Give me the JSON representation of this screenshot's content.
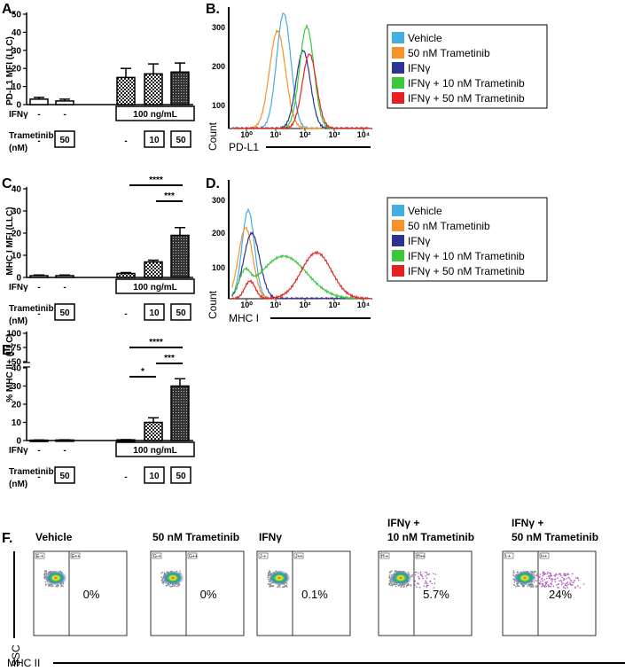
{
  "panels": {
    "A": {
      "label": "A.",
      "ylabel": "PD-L1 MFI (LLC)",
      "yticks": [
        "0",
        "10",
        "20",
        "30",
        "40",
        "50"
      ]
    },
    "B": {
      "label": "B.",
      "ylabel": "Count",
      "xlabel": "PD-L1"
    },
    "C": {
      "label": "C.",
      "ylabel": "MHC I MFI (LLC)",
      "yticks": [
        "0",
        "10",
        "20",
        "30",
        "40"
      ]
    },
    "D": {
      "label": "D.",
      "ylabel": "Count",
      "xlabel": "MHC I"
    },
    "E": {
      "label": "E.",
      "ylabel": "% MHC II+ (LLC)",
      "yticks_low": [
        "0",
        "10",
        "20",
        "30",
        "40"
      ],
      "yticks_high": [
        "50",
        "75",
        "100"
      ]
    },
    "F": {
      "label": "F.",
      "ylabel": "SSC",
      "xlabel": "MHC II"
    }
  },
  "treatment_table": {
    "ifn_label": "IFNγ",
    "tram_label": "Trametinib",
    "tram_unit": "(nM)",
    "dash": "-",
    "ifn_dose": "100 ng/mL",
    "doses": [
      "50",
      "10",
      "50"
    ]
  },
  "significance": {
    "four": "****",
    "three": "***",
    "one": "*"
  },
  "legend": [
    "Vehicle",
    "50 nM Trametinib",
    "IFNγ",
    "IFNγ + 10 nM Trametinib",
    "IFNγ + 50 nM Trametinib"
  ],
  "colors": {
    "vehicle": "#44aee0",
    "tram50": "#f5922a",
    "ifn": "#2e3192",
    "ifn_tram10": "#3cc83c",
    "ifn_tram50": "#e52222"
  },
  "flow_plots": [
    {
      "title": "Vehicle",
      "pct": "0%",
      "gate_left": "E-+",
      "gate_right": "E++"
    },
    {
      "title": "50 nM Trametinib",
      "pct": "0%",
      "gate_left": "G-+",
      "gate_right": "G++"
    },
    {
      "title": "IFNγ",
      "pct": "0.1%",
      "gate_left": "J-+",
      "gate_right": "J++"
    },
    {
      "title": "IFNγ +",
      "title2": "10 nM Trametinib",
      "pct": "5.7%",
      "gate_left": "H-+",
      "gate_right": "H++"
    },
    {
      "title": "IFNγ +",
      "title2": "50 nM Trametinib",
      "pct": "24%",
      "gate_left": "I-+",
      "gate_right": "I++"
    }
  ],
  "hist_ticks": [
    "10⁰",
    "10¹",
    "10²",
    "10³",
    "10⁴"
  ],
  "hist_yticks_B": [
    "100",
    "200",
    "300"
  ],
  "hist_yticks_D": [
    "100",
    "200",
    "300"
  ],
  "chart_data": [
    {
      "type": "bar",
      "title": "PD-L1 MFI (LLC)",
      "categories": [
        "Vehicle",
        "50 nM Trametinib",
        "IFNγ",
        "IFNγ + 10 nM Trametinib",
        "IFNγ + 50 nM Trametinib"
      ],
      "values": [
        3,
        2,
        15,
        17,
        18
      ],
      "errors": [
        1,
        1,
        5,
        5.5,
        5
      ],
      "ylim": [
        0,
        50
      ]
    },
    {
      "type": "bar",
      "title": "MHC I MFI (LLC)",
      "categories": [
        "Vehicle",
        "50 nM Trametinib",
        "IFNγ",
        "IFNγ + 10 nM Trametinib",
        "IFNγ + 50 nM Trametinib"
      ],
      "values": [
        0.8,
        0.8,
        1.8,
        7,
        19
      ],
      "errors": [
        0.3,
        0.3,
        0.4,
        0.8,
        3.5
      ],
      "ylim": [
        0,
        40
      ]
    },
    {
      "type": "bar",
      "title": "% MHC II+ (LLC)",
      "categories": [
        "Vehicle",
        "50 nM Trametinib",
        "IFNγ",
        "IFNγ + 10 nM Trametinib",
        "IFNγ + 50 nM Trametinib"
      ],
      "values": [
        0.2,
        0.3,
        0.4,
        10,
        30
      ],
      "errors": [
        0.1,
        0.1,
        0.1,
        2.5,
        4
      ],
      "ylim": [
        0,
        100
      ]
    }
  ]
}
